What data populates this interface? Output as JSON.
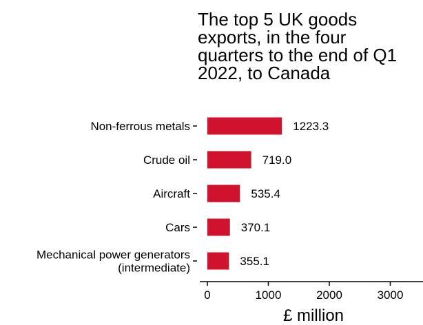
{
  "chart_data": {
    "type": "bar",
    "orientation": "horizontal",
    "title_lines": [
      "The top 5 UK goods",
      "exports, in the four",
      "quarters to the end of Q1",
      "2022, to Canada"
    ],
    "categories": [
      [
        "Non-ferrous metals"
      ],
      [
        "Crude oil"
      ],
      [
        "Aircraft"
      ],
      [
        "Cars"
      ],
      [
        "Mechanical power generators",
        "(intermediate)"
      ]
    ],
    "values": [
      1223.3,
      719.0,
      535.4,
      370.1,
      355.1
    ],
    "value_labels": [
      "1223.3",
      "719.0",
      "535.4",
      "370.1",
      "355.1"
    ],
    "xlabel": "£ million",
    "ylabel": "",
    "xlim": [
      0,
      3500
    ],
    "xticks": [
      0,
      1000,
      2000,
      3000
    ],
    "xtick_labels": [
      "0",
      "1000",
      "2000",
      "3000"
    ],
    "grid": false,
    "bar_color": "#d0122e"
  }
}
